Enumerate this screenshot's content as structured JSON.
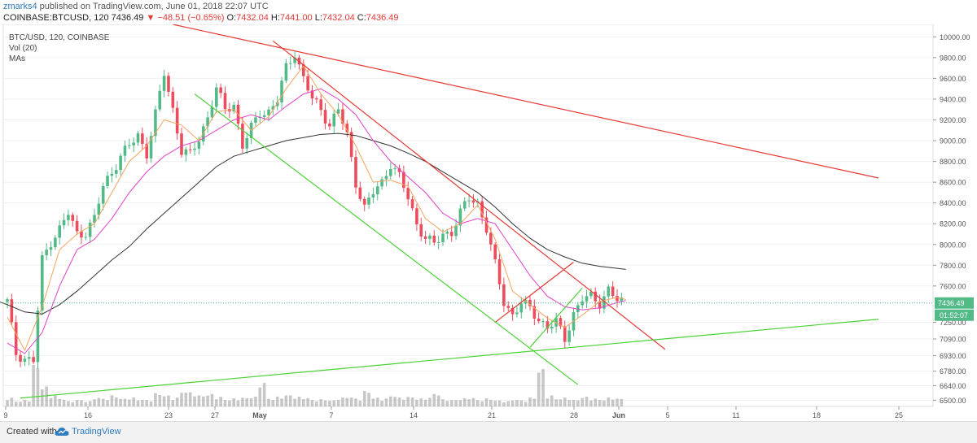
{
  "header": {
    "user": "zmarks4",
    "published": "published on TradingView.com, June 01, 2018 22:07 UTC",
    "symbol": "COINBASE:BTCUSD, 120",
    "last": "7436.49",
    "arrow": "▼",
    "change": "−48.51 (−0.65%)",
    "o_label": "O:",
    "o_value": "7432.04",
    "h_label": "H:",
    "h_value": "7441.00",
    "l_label": "L:",
    "l_value": "7432.04",
    "c_label": "C:",
    "c_value": "7436.49"
  },
  "legend": {
    "line1": "BTC/USD, 120, COINBASE",
    "line2": "Vol (20)",
    "line3": "MAs"
  },
  "footer": {
    "created_with": "Created with",
    "brand": "TradingView",
    "logo_icon": "tradingview-cloud-icon"
  },
  "colors": {
    "up": "#53b987",
    "down": "#eb4d5c",
    "ma_fast": "#f4a460",
    "ma_mid": "#e040c8",
    "ma_slow": "#333333",
    "trend_red": "#e53935",
    "trend_green": "#4cd137",
    "last_price_bg": "#53b987"
  },
  "chart_data": {
    "type": "candlestick",
    "ylim": [
      6440,
      10120
    ],
    "y_ticks": [
      "10000.00",
      "9800.00",
      "9600.00",
      "9400.00",
      "9200.00",
      "9000.00",
      "8800.00",
      "8600.00",
      "8400.00",
      "8200.00",
      "8000.00",
      "7800.00",
      "7600.00",
      "7436.49",
      "7250.00",
      "7090.00",
      "6930.00",
      "6780.00",
      "6640.00",
      "6500.00"
    ],
    "x_labels": [
      "9",
      "16",
      "23",
      "27",
      "May",
      "7",
      "14",
      "21",
      "28",
      "Jun",
      "5",
      "11",
      "18",
      "25"
    ],
    "last_price": "7436.49",
    "countdown": "01:52:07",
    "close_path": [
      [
        0,
        7450
      ],
      [
        1,
        6950
      ],
      [
        2,
        6900
      ],
      [
        3,
        6880
      ],
      [
        4,
        7850
      ],
      [
        5,
        8030
      ],
      [
        6,
        8150
      ],
      [
        7,
        8300
      ],
      [
        8,
        8100
      ],
      [
        9,
        8120
      ],
      [
        10,
        8250
      ],
      [
        11,
        8560
      ],
      [
        12,
        8700
      ],
      [
        13,
        8850
      ],
      [
        14,
        8950
      ],
      [
        15,
        9050
      ],
      [
        16,
        8880
      ],
      [
        17,
        9250
      ],
      [
        18,
        9650
      ],
      [
        19,
        9300
      ],
      [
        20,
        8900
      ],
      [
        21,
        8860
      ],
      [
        22,
        9020
      ],
      [
        23,
        9230
      ],
      [
        24,
        9500
      ],
      [
        25,
        9300
      ],
      [
        26,
        9350
      ],
      [
        27,
        8950
      ],
      [
        28,
        9120
      ],
      [
        29,
        9270
      ],
      [
        30,
        9280
      ],
      [
        31,
        9390
      ],
      [
        32,
        9700
      ],
      [
        33,
        9850
      ],
      [
        34,
        9600
      ],
      [
        35,
        9400
      ],
      [
        36,
        9300
      ],
      [
        37,
        9150
      ],
      [
        38,
        9300
      ],
      [
        39,
        9050
      ],
      [
        40,
        8600
      ],
      [
        41,
        8350
      ],
      [
        42,
        8500
      ],
      [
        43,
        8600
      ],
      [
        44,
        8780
      ],
      [
        45,
        8650
      ],
      [
        46,
        8450
      ],
      [
        47,
        8200
      ],
      [
        48,
        8060
      ],
      [
        49,
        8000
      ],
      [
        50,
        8100
      ],
      [
        51,
        8120
      ],
      [
        52,
        8300
      ],
      [
        53,
        8450
      ],
      [
        54,
        8400
      ],
      [
        55,
        8150
      ],
      [
        56,
        7800
      ],
      [
        57,
        7450
      ],
      [
        58,
        7320
      ],
      [
        59,
        7430
      ],
      [
        60,
        7390
      ],
      [
        61,
        7280
      ],
      [
        62,
        7200
      ],
      [
        63,
        7250
      ],
      [
        64,
        7100
      ],
      [
        65,
        7330
      ],
      [
        66,
        7470
      ],
      [
        67,
        7500
      ],
      [
        68,
        7440
      ],
      [
        69,
        7560
      ],
      [
        70,
        7460
      ],
      [
        71,
        7440
      ]
    ],
    "ma_fast": [
      [
        0,
        7300
      ],
      [
        2,
        6980
      ],
      [
        4,
        7400
      ],
      [
        6,
        7950
      ],
      [
        8,
        8100
      ],
      [
        10,
        8200
      ],
      [
        12,
        8500
      ],
      [
        14,
        8800
      ],
      [
        16,
        8950
      ],
      [
        18,
        9200
      ],
      [
        20,
        9150
      ],
      [
        22,
        9000
      ],
      [
        24,
        9280
      ],
      [
        26,
        9300
      ],
      [
        28,
        9100
      ],
      [
        30,
        9230
      ],
      [
        32,
        9500
      ],
      [
        34,
        9720
      ],
      [
        36,
        9450
      ],
      [
        38,
        9250
      ],
      [
        40,
        8950
      ],
      [
        42,
        8600
      ],
      [
        44,
        8620
      ],
      [
        46,
        8560
      ],
      [
        48,
        8250
      ],
      [
        50,
        8120
      ],
      [
        52,
        8200
      ],
      [
        54,
        8380
      ],
      [
        56,
        8050
      ],
      [
        58,
        7550
      ],
      [
        60,
        7420
      ],
      [
        62,
        7290
      ],
      [
        64,
        7200
      ],
      [
        66,
        7320
      ],
      [
        68,
        7450
      ],
      [
        70,
        7490
      ],
      [
        71,
        7470
      ]
    ],
    "ma_mid": [
      [
        0,
        7050
      ],
      [
        2,
        6950
      ],
      [
        4,
        7150
      ],
      [
        6,
        7600
      ],
      [
        8,
        7950
      ],
      [
        10,
        8050
      ],
      [
        12,
        8250
      ],
      [
        14,
        8500
      ],
      [
        16,
        8700
      ],
      [
        18,
        8850
      ],
      [
        20,
        8950
      ],
      [
        22,
        9000
      ],
      [
        24,
        9100
      ],
      [
        26,
        9200
      ],
      [
        28,
        9250
      ],
      [
        30,
        9200
      ],
      [
        32,
        9330
      ],
      [
        34,
        9450
      ],
      [
        36,
        9500
      ],
      [
        38,
        9400
      ],
      [
        40,
        9250
      ],
      [
        42,
        9000
      ],
      [
        44,
        8800
      ],
      [
        46,
        8650
      ],
      [
        48,
        8500
      ],
      [
        50,
        8300
      ],
      [
        52,
        8200
      ],
      [
        54,
        8250
      ],
      [
        56,
        8200
      ],
      [
        58,
        7950
      ],
      [
        60,
        7700
      ],
      [
        62,
        7500
      ],
      [
        64,
        7400
      ],
      [
        66,
        7370
      ],
      [
        68,
        7390
      ],
      [
        70,
        7440
      ],
      [
        71,
        7460
      ]
    ],
    "ma_slow": [
      [
        -1,
        7450
      ],
      [
        0,
        7420
      ],
      [
        2,
        7350
      ],
      [
        4,
        7330
      ],
      [
        6,
        7420
      ],
      [
        8,
        7550
      ],
      [
        10,
        7700
      ],
      [
        12,
        7850
      ],
      [
        14,
        7980
      ],
      [
        16,
        8150
      ],
      [
        18,
        8300
      ],
      [
        20,
        8450
      ],
      [
        22,
        8600
      ],
      [
        24,
        8750
      ],
      [
        26,
        8850
      ],
      [
        28,
        8900
      ],
      [
        30,
        8950
      ],
      [
        32,
        9000
      ],
      [
        34,
        9030
      ],
      [
        36,
        9060
      ],
      [
        38,
        9070
      ],
      [
        40,
        9050
      ],
      [
        42,
        9000
      ],
      [
        44,
        8950
      ],
      [
        46,
        8880
      ],
      [
        48,
        8800
      ],
      [
        50,
        8700
      ],
      [
        52,
        8600
      ],
      [
        54,
        8500
      ],
      [
        56,
        8360
      ],
      [
        58,
        8200
      ],
      [
        60,
        8060
      ],
      [
        62,
        7950
      ],
      [
        64,
        7880
      ],
      [
        66,
        7820
      ],
      [
        68,
        7790
      ],
      [
        70,
        7770
      ],
      [
        71,
        7760
      ]
    ],
    "volume": [
      0.2,
      0.12,
      0.15,
      0.95,
      0.45,
      0.25,
      0.18,
      0.12,
      0.15,
      0.12,
      0.2,
      0.18,
      0.25,
      0.18,
      0.2,
      0.16,
      0.15,
      0.3,
      0.25,
      0.2,
      0.35,
      0.32,
      0.25,
      0.28,
      0.22,
      0.16,
      0.18,
      0.2,
      0.22,
      0.55,
      0.18,
      0.22,
      0.26,
      0.22,
      0.2,
      0.15,
      0.16,
      0.14,
      0.2,
      0.22,
      0.18,
      0.35,
      0.2,
      0.18,
      0.25,
      0.2,
      0.22,
      0.18,
      0.2,
      0.3,
      0.16,
      0.15,
      0.18,
      0.2,
      0.15,
      0.18,
      0.14,
      0.12,
      0.16,
      0.14,
      0.2,
      0.85,
      0.25,
      0.18,
      0.2,
      0.15,
      0.22,
      0.18,
      0.16,
      0.2,
      0.18,
      0.14
    ],
    "trendlines": [
      {
        "color": "red",
        "from": [
          19.0,
          10120
        ],
        "to": [
          100,
          8640
        ]
      },
      {
        "color": "red",
        "from": [
          30.5,
          9960
        ],
        "to": [
          75.5,
          6990
        ]
      },
      {
        "color": "red",
        "from": [
          56,
          7250
        ],
        "to": [
          65,
          7830
        ]
      },
      {
        "color": "green",
        "from": [
          21.5,
          9450
        ],
        "to": [
          65.5,
          6650
        ]
      },
      {
        "color": "green",
        "from": [
          60,
          7010
        ],
        "to": [
          66,
          7580
        ]
      },
      {
        "color": "green",
        "from": [
          1.5,
          6520
        ],
        "to": [
          100,
          7280
        ]
      }
    ]
  }
}
